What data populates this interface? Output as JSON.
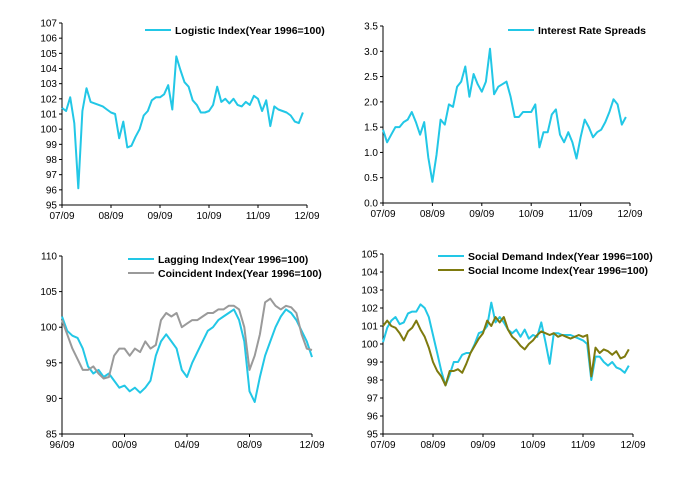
{
  "colors": {
    "cyan": "#22C7E6",
    "gray": "#9A9A9A",
    "olive": "#7E7A0E"
  },
  "chart_data": [
    {
      "type": "line",
      "id": "logistic",
      "title": "",
      "x_tick_labels": [
        "07/09",
        "08/09",
        "09/09",
        "10/09",
        "11/09",
        "12/09"
      ],
      "x_tick_positions": [
        0,
        12,
        24,
        36,
        48,
        60
      ],
      "xlim": [
        0,
        60
      ],
      "ylim": [
        95,
        107
      ],
      "y_ticks": [
        95,
        96,
        97,
        98,
        99,
        100,
        101,
        102,
        103,
        104,
        105,
        106,
        107
      ],
      "y_decimals": 0,
      "legend": "top-right",
      "grid": false,
      "series": [
        {
          "name": "Logistic Index(Year 1996=100)",
          "color": "#22C7E6",
          "values": [
            101.4,
            101.2,
            102.1,
            100.4,
            96.1,
            101.2,
            102.7,
            101.8,
            101.7,
            101.6,
            101.5,
            101.3,
            101.1,
            101.0,
            99.4,
            100.5,
            98.8,
            98.9,
            99.5,
            100.0,
            100.9,
            101.2,
            101.9,
            102.1,
            102.1,
            102.3,
            102.9,
            101.3,
            104.8,
            103.9,
            103.1,
            102.8,
            101.9,
            101.6,
            101.1,
            101.1,
            101.2,
            101.6,
            102.8,
            101.8,
            102.0,
            101.7,
            102.0,
            101.6,
            101.5,
            101.8,
            101.6,
            102.2,
            102.0,
            101.2,
            101.9,
            100.2,
            101.5,
            101.3,
            101.2,
            101.1,
            100.9,
            100.5,
            100.4,
            101.1
          ]
        }
      ]
    },
    {
      "type": "line",
      "id": "spreads",
      "title": "",
      "x_tick_labels": [
        "07/09",
        "08/09",
        "09/09",
        "10/09",
        "11/09",
        "12/09"
      ],
      "x_tick_positions": [
        0,
        12,
        24,
        36,
        48,
        60
      ],
      "xlim": [
        0,
        60
      ],
      "ylim": [
        0,
        3.5
      ],
      "y_ticks": [
        0.0,
        0.5,
        1.0,
        1.5,
        2.0,
        2.5,
        3.0,
        3.5
      ],
      "y_decimals": 1,
      "legend": "top-right",
      "grid": false,
      "series": [
        {
          "name": "Interest Rate Spreads",
          "color": "#22C7E6",
          "values": [
            1.45,
            1.2,
            1.35,
            1.5,
            1.5,
            1.6,
            1.65,
            1.8,
            1.6,
            1.35,
            1.6,
            0.9,
            0.42,
            0.95,
            1.65,
            1.55,
            1.95,
            1.9,
            2.3,
            2.4,
            2.7,
            2.1,
            2.55,
            2.35,
            2.2,
            2.4,
            3.05,
            2.15,
            2.3,
            2.35,
            2.4,
            2.1,
            1.7,
            1.7,
            1.8,
            1.8,
            1.8,
            1.95,
            1.1,
            1.4,
            1.4,
            1.75,
            1.85,
            1.35,
            1.2,
            1.4,
            1.2,
            0.88,
            1.3,
            1.65,
            1.5,
            1.3,
            1.4,
            1.45,
            1.6,
            1.8,
            2.05,
            1.95,
            1.55,
            1.7
          ]
        }
      ]
    },
    {
      "type": "line",
      "id": "lagging",
      "title": "",
      "x_tick_labels": [
        "96/09",
        "00/09",
        "04/09",
        "08/09",
        "12/09"
      ],
      "x_tick_positions": [
        0,
        48,
        96,
        144,
        192
      ],
      "xlim": [
        0,
        192
      ],
      "ylim": [
        85,
        110
      ],
      "y_ticks": [
        85,
        90,
        95,
        100,
        105,
        110
      ],
      "y_decimals": 0,
      "legend": "top-right",
      "grid": false,
      "series": [
        {
          "name": "Lagging Index(Year 1996=100)",
          "color": "#22C7E6",
          "x": [
            0,
            4,
            8,
            12,
            16,
            20,
            24,
            28,
            32,
            36,
            40,
            44,
            48,
            52,
            56,
            60,
            64,
            68,
            72,
            76,
            80,
            84,
            88,
            92,
            96,
            100,
            104,
            108,
            112,
            116,
            120,
            124,
            128,
            132,
            136,
            140,
            144,
            148,
            152,
            156,
            160,
            164,
            168,
            172,
            176,
            180,
            184,
            188,
            192
          ],
          "values": [
            101.5,
            99.5,
            98.8,
            98.5,
            97.0,
            94.5,
            93.5,
            94.0,
            93.0,
            93.5,
            92.5,
            91.5,
            91.8,
            91.0,
            91.5,
            90.8,
            91.5,
            92.5,
            96.0,
            98.0,
            99.0,
            98.0,
            97.0,
            94.0,
            93.0,
            95.0,
            96.5,
            98.0,
            99.5,
            100.0,
            101.0,
            101.5,
            102.0,
            102.5,
            101.0,
            98.0,
            91.0,
            89.5,
            93.0,
            96.0,
            98.0,
            100.0,
            101.5,
            102.5,
            102.0,
            101.0,
            99.5,
            98.0,
            95.8
          ]
        },
        {
          "name": "Coincident Index(Year 1996=100)",
          "color": "#9A9A9A",
          "x": [
            0,
            4,
            8,
            12,
            16,
            20,
            24,
            28,
            32,
            36,
            40,
            44,
            48,
            52,
            56,
            60,
            64,
            68,
            72,
            76,
            80,
            84,
            88,
            92,
            96,
            100,
            104,
            108,
            112,
            116,
            120,
            124,
            128,
            132,
            136,
            140,
            144,
            148,
            152,
            156,
            160,
            164,
            168,
            172,
            176,
            180,
            184,
            188,
            192
          ],
          "values": [
            101.0,
            99.0,
            97.0,
            95.5,
            94.0,
            94.0,
            94.5,
            93.5,
            92.8,
            93.0,
            96.0,
            97.0,
            97.0,
            96.0,
            97.0,
            96.5,
            98.0,
            97.0,
            97.5,
            101.0,
            102.0,
            101.5,
            102.0,
            100.0,
            100.5,
            101.0,
            101.0,
            101.5,
            102.0,
            102.0,
            102.5,
            102.5,
            103.0,
            103.0,
            102.5,
            100.0,
            94.0,
            96.0,
            99.0,
            103.5,
            104.0,
            103.0,
            102.5,
            103.0,
            102.8,
            102.0,
            99.0,
            97.0,
            96.8
          ]
        }
      ]
    },
    {
      "type": "line",
      "id": "social",
      "title": "",
      "x_tick_labels": [
        "07/09",
        "08/09",
        "09/09",
        "10/09",
        "11/09",
        "12/09"
      ],
      "x_tick_positions": [
        0,
        12,
        24,
        36,
        48,
        60
      ],
      "xlim": [
        0,
        60
      ],
      "ylim": [
        95,
        105
      ],
      "y_ticks": [
        95,
        96,
        97,
        98,
        99,
        100,
        101,
        102,
        103,
        104,
        105
      ],
      "y_decimals": 0,
      "legend": "top-right",
      "grid": false,
      "series": [
        {
          "name": "Social Demand Index(Year 1996=100)",
          "color": "#22C7E6",
          "values": [
            100.1,
            100.9,
            101.3,
            101.5,
            101.1,
            101.2,
            101.7,
            101.8,
            101.8,
            102.2,
            102.0,
            101.5,
            100.5,
            99.5,
            98.5,
            97.7,
            98.3,
            99.0,
            99.0,
            99.4,
            99.5,
            99.5,
            100.0,
            100.6,
            100.7,
            101.0,
            102.3,
            101.2,
            101.5,
            101.2,
            100.8,
            100.6,
            100.8,
            100.4,
            100.8,
            100.3,
            100.5,
            100.4,
            101.2,
            100.1,
            98.9,
            100.6,
            100.6,
            100.5,
            100.5,
            100.5,
            100.4,
            100.3,
            100.2,
            100.0,
            98.0,
            99.3,
            99.3,
            99.0,
            98.8,
            99.0,
            98.7,
            98.6,
            98.4,
            98.8
          ]
        },
        {
          "name": "Social Income Index(Year 1996=100)",
          "color": "#7E7A0E",
          "values": [
            101.0,
            101.3,
            101.0,
            100.9,
            100.6,
            100.2,
            100.7,
            100.9,
            101.3,
            100.8,
            100.4,
            99.8,
            99.0,
            98.5,
            98.2,
            97.7,
            98.5,
            98.5,
            98.6,
            98.4,
            98.9,
            99.5,
            99.9,
            100.3,
            100.6,
            101.3,
            101.0,
            101.5,
            101.2,
            101.5,
            100.8,
            100.4,
            100.2,
            99.9,
            99.7,
            100.0,
            100.2,
            100.5,
            100.7,
            100.6,
            100.5,
            100.6,
            100.4,
            100.5,
            100.4,
            100.3,
            100.4,
            100.5,
            100.4,
            100.5,
            98.2,
            99.8,
            99.5,
            99.7,
            99.6,
            99.4,
            99.6,
            99.2,
            99.3,
            99.7
          ]
        }
      ]
    }
  ]
}
